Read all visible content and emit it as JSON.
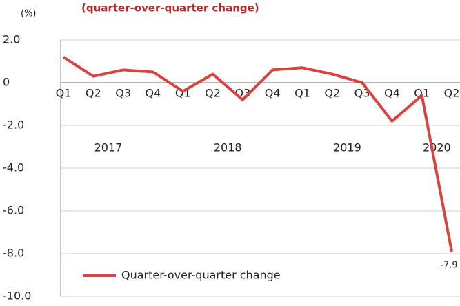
{
  "chart_data": {
    "type": "line",
    "title": "(quarter-over-quarter change)",
    "y_axis_label": "(%)",
    "categories": [
      "Q1",
      "Q2",
      "Q3",
      "Q4",
      "Q1",
      "Q2",
      "Q3",
      "Q4",
      "Q1",
      "Q2",
      "Q3",
      "Q4",
      "Q1",
      "Q2"
    ],
    "year_labels": [
      "2017",
      "2018",
      "2019",
      "2020"
    ],
    "series": [
      {
        "name": "Quarter-over-quarter change",
        "color": "#d9433e",
        "values": [
          1.2,
          0.3,
          0.6,
          0.5,
          -0.4,
          0.4,
          -0.8,
          0.6,
          0.7,
          0.4,
          0.0,
          -1.8,
          -0.6,
          -7.9
        ],
        "value_labels": [
          null,
          null,
          null,
          null,
          null,
          null,
          null,
          null,
          null,
          null,
          null,
          null,
          null,
          "-7.9"
        ]
      }
    ],
    "ylim": [
      -10,
      2
    ],
    "yticks": [
      {
        "value": 2,
        "label": "2.0"
      },
      0,
      {
        "value": -2,
        "label": "-2.0"
      },
      {
        "value": -4,
        "label": "-4.0"
      },
      {
        "value": -6,
        "label": "-6.0"
      },
      {
        "value": -8,
        "label": "-8.0"
      },
      {
        "value": -10,
        "label": "-10.0"
      }
    ],
    "grid": true,
    "legend": "lower left"
  }
}
